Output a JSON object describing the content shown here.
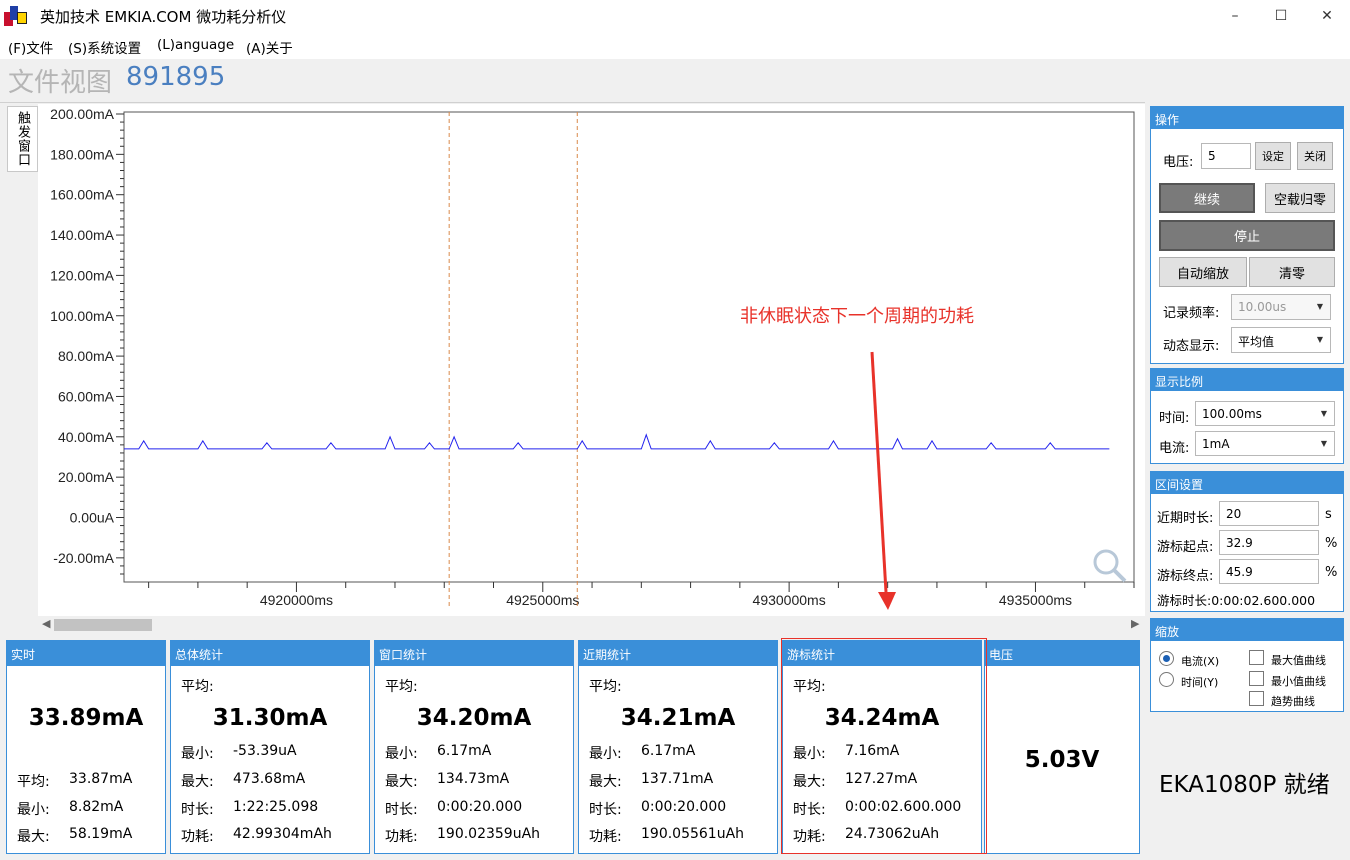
{
  "window": {
    "title": "英加技术 EMKIA.COM 微功耗分析仪",
    "controls": {
      "minimize": "–",
      "maximize": "☐",
      "close": "✕"
    }
  },
  "menu": [
    "(F)文件",
    "(S)系统设置",
    "(L)anguage",
    "(A)关于"
  ],
  "view": {
    "title": "文件视图",
    "id": "891895"
  },
  "trigger_tab": "触发窗口",
  "chart_data": {
    "type": "line",
    "ylim": [
      -30,
      200
    ],
    "xlim": [
      4916500,
      4937000
    ],
    "yticks": [
      200,
      180,
      160,
      140,
      120,
      100,
      80,
      60,
      40,
      20,
      0,
      -20
    ],
    "ytick_labels": [
      "200.00mA",
      "180.00mA",
      "160.00mA",
      "140.00mA",
      "120.00mA",
      "100.00mA",
      "80.00mA",
      "60.00mA",
      "40.00mA",
      "20.00mA",
      "0.00uA",
      "-20.00mA"
    ],
    "xticks": [
      4920000,
      4925000,
      4930000,
      4935000
    ],
    "xtick_labels": [
      "4920000ms",
      "4925000ms",
      "4930000ms",
      "4935000ms"
    ],
    "cursors": [
      4923100,
      4925700
    ],
    "series": [
      {
        "color": "#2222ee",
        "x": [
          4916500,
          4916800,
          4916900,
          4917000,
          4917200,
          4918000,
          4918100,
          4918200,
          4918400,
          4919300,
          4919400,
          4919500,
          4919700,
          4920600,
          4920700,
          4920800,
          4921000,
          4921800,
          4921900,
          4922000,
          4922200,
          4922600,
          4922700,
          4922800,
          4923000,
          4923100,
          4923200,
          4923300,
          4923500,
          4924400,
          4924500,
          4924600,
          4924800,
          4925700,
          4925800,
          4925900,
          4926100,
          4927000,
          4927100,
          4927200,
          4927400,
          4928300,
          4928400,
          4928500,
          4928700,
          4929600,
          4929700,
          4929800,
          4930000,
          4930800,
          4930900,
          4931000,
          4931200,
          4932100,
          4932200,
          4932300,
          4932500,
          4932800,
          4932900,
          4933000,
          4933200,
          4934000,
          4934100,
          4934200,
          4934400,
          4935200,
          4935300,
          4935400,
          4935600,
          4936500
        ],
        "y": [
          34,
          34,
          38,
          34,
          34,
          34,
          38,
          34,
          34,
          34,
          37,
          34,
          34,
          34,
          37,
          34,
          34,
          34,
          40,
          34,
          34,
          34,
          37,
          34,
          34,
          34,
          40,
          34,
          34,
          34,
          37,
          34,
          34,
          34,
          38,
          34,
          34,
          34,
          41,
          34,
          34,
          34,
          38,
          34,
          34,
          34,
          37,
          34,
          34,
          34,
          38,
          34,
          34,
          34,
          39,
          34,
          34,
          34,
          38,
          34,
          34,
          34,
          37,
          34,
          34,
          34,
          37,
          34,
          34,
          34
        ]
      }
    ],
    "annotation": {
      "text": "非休眠状态下一个周期的功耗",
      "color": "#e8322a"
    }
  },
  "panels": [
    {
      "title": "实时",
      "big": "33.89mA",
      "rows": [
        {
          "label": "平均:",
          "value": "33.87mA"
        },
        {
          "label": "最小:",
          "value": "8.82mA"
        },
        {
          "label": "最大:",
          "value": "58.19mA"
        }
      ]
    },
    {
      "title": "总体统计",
      "avg_label": "平均:",
      "big": "31.30mA",
      "rows": [
        {
          "label": "最小:",
          "value": "-53.39uA"
        },
        {
          "label": "最大:",
          "value": "473.68mA"
        },
        {
          "label": "时长:",
          "value": "1:22:25.098"
        },
        {
          "label": "功耗:",
          "value": "42.99304mAh"
        }
      ]
    },
    {
      "title": "窗口统计",
      "avg_label": "平均:",
      "big": "34.20mA",
      "rows": [
        {
          "label": "最小:",
          "value": "6.17mA"
        },
        {
          "label": "最大:",
          "value": "134.73mA"
        },
        {
          "label": "时长:",
          "value": "0:00:20.000"
        },
        {
          "label": "功耗:",
          "value": "190.02359uAh"
        }
      ]
    },
    {
      "title": "近期统计",
      "avg_label": "平均:",
      "big": "34.21mA",
      "rows": [
        {
          "label": "最小:",
          "value": "6.17mA"
        },
        {
          "label": "最大:",
          "value": "137.71mA"
        },
        {
          "label": "时长:",
          "value": "0:00:20.000"
        },
        {
          "label": "功耗:",
          "value": "190.05561uAh"
        }
      ]
    },
    {
      "title": "游标统计",
      "avg_label": "平均:",
      "big": "34.24mA",
      "rows": [
        {
          "label": "最小:",
          "value": "7.16mA"
        },
        {
          "label": "最大:",
          "value": "127.27mA"
        },
        {
          "label": "时长:",
          "value": "0:00:02.600.000"
        },
        {
          "label": "功耗:",
          "value": "24.73062uAh"
        }
      ]
    },
    {
      "title": "电压",
      "big": "5.03V"
    }
  ],
  "right": {
    "ops": {
      "title": "操作",
      "voltage_label": "电压:",
      "voltage_value": "5",
      "set": "设定",
      "close": "关闭",
      "continue": "继续",
      "zero": "空载归零",
      "stop": "停止",
      "autoscale": "自动缩放",
      "clear": "清零",
      "rate_label": "记录频率:",
      "rate_value": "10.00us",
      "dyn_label": "动态显示:",
      "dyn_value": "平均值"
    },
    "scale": {
      "title": "显示比例",
      "time_label": "时间:",
      "time_value": "100.00ms",
      "current_label": "电流:",
      "current_value": "1mA"
    },
    "interval": {
      "title": "区间设置",
      "recent_label": "近期时长:",
      "recent_value": "20",
      "recent_unit": "s",
      "start_label": "游标起点:",
      "start_value": "32.9",
      "start_unit": "%",
      "end_label": "游标终点:",
      "end_value": "45.9",
      "end_unit": "%",
      "duration_text": "游标时长:0:00:02.600.000"
    },
    "zoom": {
      "title": "缩放",
      "radio_current": "电流(X)",
      "radio_time": "时间(Y)",
      "chk_max": "最大值曲线",
      "chk_min": "最小值曲线",
      "chk_trend": "趋势曲线"
    }
  },
  "status": "EKA1080P  就绪"
}
